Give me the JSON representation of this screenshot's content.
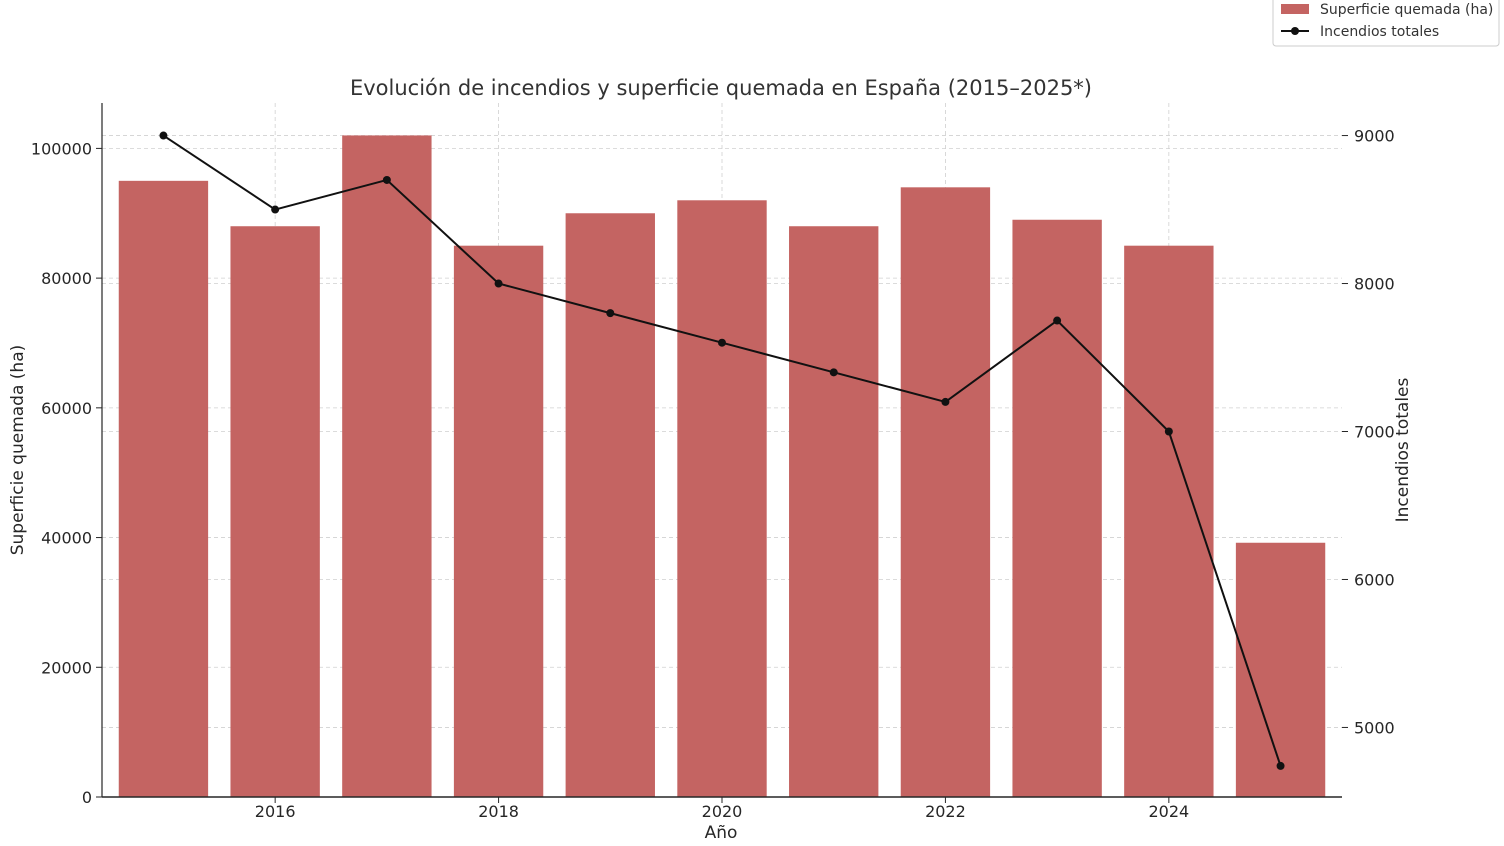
{
  "chart_data": {
    "type": "bar",
    "title": "Evolución de incendios y superficie quemada en España (2015–2025*)",
    "xlabel": "Año",
    "ylabel": "Superficie quemada (ha)",
    "y2label": "Incendios totales",
    "categories": [
      2015,
      2016,
      2017,
      2018,
      2019,
      2020,
      2021,
      2022,
      2023,
      2024,
      2025
    ],
    "x_ticks": [
      2016,
      2018,
      2020,
      2022,
      2024
    ],
    "y_ticks": [
      0,
      20000,
      40000,
      60000,
      80000,
      100000
    ],
    "y2_ticks": [
      5000,
      6000,
      7000,
      8000,
      9000
    ],
    "ylim": [
      0,
      107000
    ],
    "y2lim": [
      4530,
      9220
    ],
    "grid": true,
    "legend_position": "top-right",
    "series": [
      {
        "name": "Superficie quemada (ha)",
        "type": "bar",
        "axis": "left",
        "color": "#c46462",
        "values": [
          95000,
          88000,
          102000,
          85000,
          90000,
          92000,
          88000,
          94000,
          89000,
          85000,
          39200
        ]
      },
      {
        "name": "Incendios totales",
        "type": "line",
        "axis": "right",
        "color": "#111111",
        "marker": "circle",
        "values": [
          9000,
          8500,
          8700,
          8000,
          7800,
          7600,
          7400,
          7200,
          7750,
          7000,
          4740
        ]
      }
    ]
  }
}
